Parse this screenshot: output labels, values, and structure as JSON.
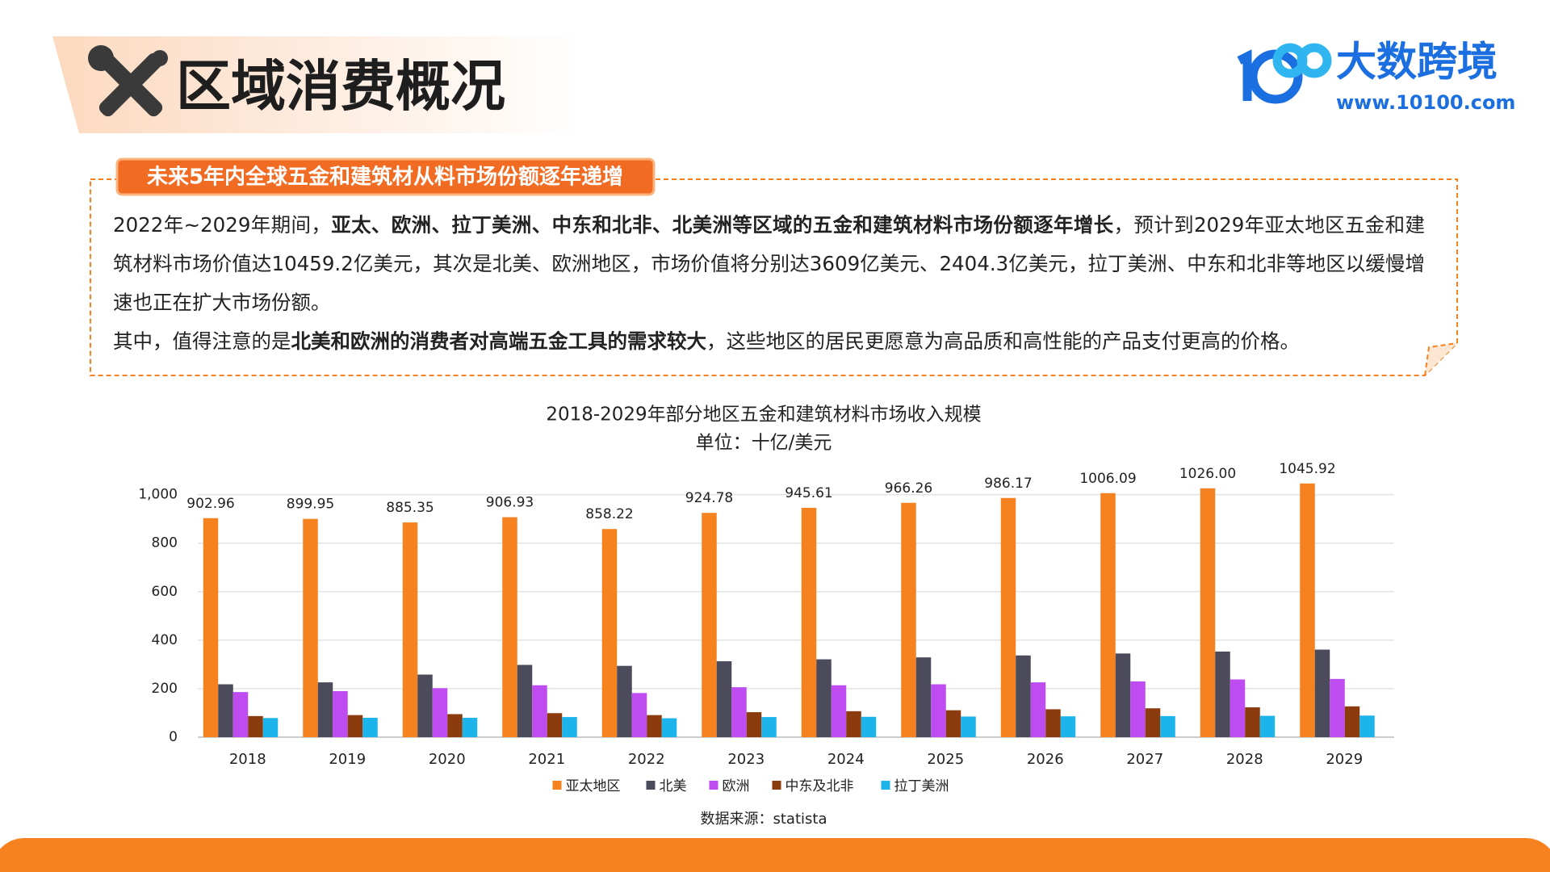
{
  "header": {
    "title": "区域消费概况",
    "logo_name": "大数跨境",
    "logo_url": "www.10100.com"
  },
  "summary": {
    "tag": "未来5年内全球五金和建筑材从料市场份额逐年递增",
    "paragraphs": [
      [
        {
          "text": "2022年~2029年期间，",
          "bold": false
        },
        {
          "text": "亚太、欧洲、拉丁美洲、中东和北非、北美洲等区域的五金和建筑材料市场份额逐年增长",
          "bold": true
        },
        {
          "text": "，预计到2029年亚太地区五金和建筑材料市场价值达10459.2亿美元，其次是北美、欧洲地区，市场价值将分别达3609亿美元、2404.3亿美元，拉丁美洲、中东和北非等地区以缓慢增速也正在扩大市场份额。",
          "bold": false
        }
      ],
      [
        {
          "text": "其中，值得注意的是",
          "bold": false
        },
        {
          "text": "北美和欧洲的消费者对高端五金工具的需求较大",
          "bold": true
        },
        {
          "text": "，这些地区的居民更愿意为高品质和高性能的产品支付更高的价格。",
          "bold": false
        }
      ]
    ]
  },
  "chart_data": {
    "type": "bar",
    "title": "2018-2029年部分地区五金和建筑材料市场收入规模",
    "subtitle": "单位：十亿/美元",
    "categories": [
      "2018",
      "2019",
      "2020",
      "2021",
      "2022",
      "2023",
      "2024",
      "2025",
      "2026",
      "2027",
      "2028",
      "2029"
    ],
    "series": [
      {
        "name": "亚太地区",
        "color": "#f5821f",
        "values": [
          902.96,
          899.95,
          885.35,
          906.93,
          858.22,
          924.78,
          945.61,
          966.26,
          986.17,
          1006.09,
          1026,
          1045.92
        ],
        "value_labels": [
          "902.96",
          "899.95",
          "885.35",
          "906.93",
          "858.22",
          "924.78",
          "945.61",
          "966.26",
          "986.17",
          "1006.09",
          "1026.00",
          "1045.92"
        ]
      },
      {
        "name": "北美",
        "color": "#4b4b5c",
        "values": [
          218,
          226,
          258,
          298,
          294,
          313,
          321,
          329,
          337,
          345,
          353,
          361
        ]
      },
      {
        "name": "欧洲",
        "color": "#bf4cf0",
        "values": [
          186,
          190,
          202,
          214,
          182,
          206,
          214,
          218,
          226,
          230,
          238,
          240
        ]
      },
      {
        "name": "中东及北非",
        "color": "#8c3b0e",
        "values": [
          87,
          91,
          95,
          99,
          91,
          103,
          107,
          111,
          115,
          119,
          123,
          127
        ]
      },
      {
        "name": "拉丁美洲",
        "color": "#1cb4ea",
        "values": [
          79,
          80,
          80,
          83,
          78,
          83,
          84,
          85,
          86,
          87,
          88,
          89
        ]
      }
    ],
    "ylim": [
      0,
      1050
    ],
    "yticks": [
      0,
      200,
      400,
      600,
      800,
      {
        "value": 1000,
        "label": "1,000"
      }
    ],
    "grid": true,
    "legend": "bottom",
    "source": "数据来源：statista"
  }
}
